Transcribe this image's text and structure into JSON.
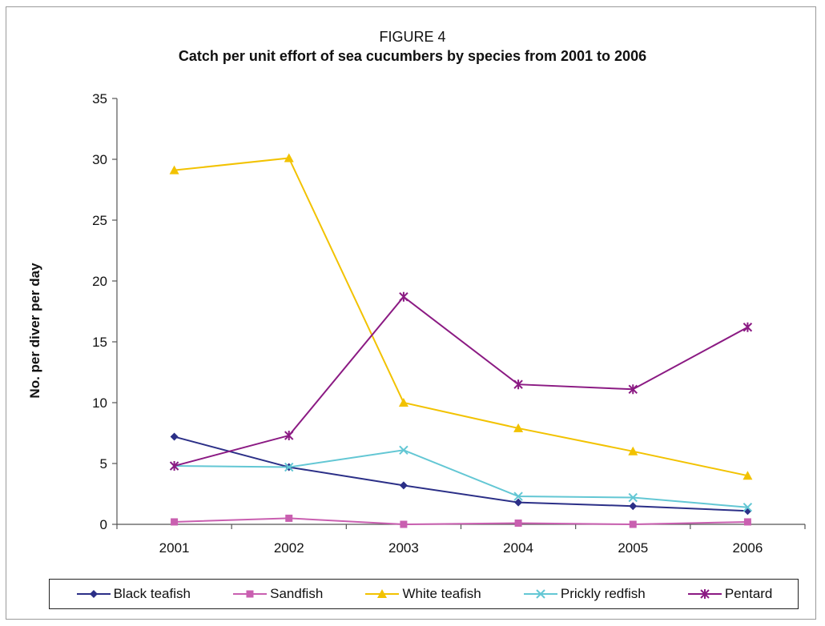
{
  "figure_label": "FIGURE 4",
  "chart_data": {
    "type": "line",
    "title": "Catch per unit effort of sea cucumbers by species from 2001 to 2006",
    "xlabel": "",
    "ylabel": "No. per diver per day",
    "categories": [
      "2001",
      "2002",
      "2003",
      "2004",
      "2005",
      "2006"
    ],
    "ylim": [
      0,
      35
    ],
    "yticks": [
      0,
      5,
      10,
      15,
      20,
      25,
      30,
      35
    ],
    "grid": false,
    "legend_position": "bottom",
    "series": [
      {
        "name": "Black teafish",
        "color": "#2b2f87",
        "marker": "diamond",
        "values": [
          7.2,
          4.7,
          3.2,
          1.8,
          1.5,
          1.1
        ]
      },
      {
        "name": "Sandfish",
        "color": "#c95fb0",
        "marker": "square",
        "values": [
          0.2,
          0.5,
          0.0,
          0.1,
          0.0,
          0.2
        ]
      },
      {
        "name": "White teafish",
        "color": "#f2c200",
        "marker": "triangle",
        "values": [
          29.1,
          30.1,
          10.0,
          7.9,
          6.0,
          4.0
        ]
      },
      {
        "name": "Prickly redfish",
        "color": "#63c7d4",
        "marker": "x",
        "values": [
          4.8,
          4.7,
          6.1,
          2.3,
          2.2,
          1.4
        ]
      },
      {
        "name": "Pentard",
        "color": "#8b1a83",
        "marker": "star",
        "values": [
          4.8,
          7.3,
          18.7,
          11.5,
          11.1,
          16.2
        ]
      }
    ]
  }
}
